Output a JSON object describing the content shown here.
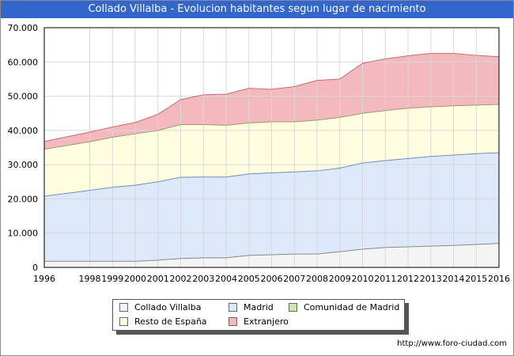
{
  "header": {
    "title": "Collado Villalba - Evolucion habitantes segun lugar de nacimiento"
  },
  "footer": {
    "credit": "http://www.foro-ciudad.com"
  },
  "chart_data": {
    "type": "area",
    "stacked": true,
    "title": "Collado Villalba - Evolucion habitantes segun lugar de nacimiento",
    "xlabel": "",
    "ylabel": "",
    "x": [
      1996,
      1998,
      1999,
      2000,
      2001,
      2002,
      2003,
      2004,
      2005,
      2006,
      2007,
      2008,
      2009,
      2010,
      2011,
      2012,
      2013,
      2014,
      2015,
      2016
    ],
    "xticks": [
      "1996",
      "1998",
      "1999",
      "2000",
      "2001",
      "2002",
      "2003",
      "2004",
      "2005",
      "2006",
      "2007",
      "2008",
      "2009",
      "2010",
      "2011",
      "2012",
      "2013",
      "2014",
      "2015",
      "2016"
    ],
    "ylim": [
      0,
      70000
    ],
    "yticks": [
      0,
      10000,
      20000,
      30000,
      40000,
      50000,
      60000,
      70000
    ],
    "ytick_labels": [
      "0",
      "10.000",
      "20.000",
      "30.000",
      "40.000",
      "50.000",
      "60.000",
      "70.000"
    ],
    "grid": true,
    "legend_position": "bottom",
    "cumulative_totals": [
      {
        "name": "Collado Villalba",
        "color": "#f4f4f4",
        "values": [
          1800,
          1800,
          1800,
          1800,
          2100,
          2600,
          2800,
          2800,
          3500,
          3700,
          3900,
          3900,
          4600,
          5300,
          5800,
          6000,
          6200,
          6400,
          6700,
          7000
        ]
      },
      {
        "name": "Madrid",
        "color": "#dde9fb",
        "values": [
          20800,
          22500,
          23400,
          24000,
          25000,
          26300,
          26400,
          26400,
          27300,
          27600,
          27900,
          28200,
          29000,
          30500,
          31200,
          31800,
          32400,
          32800,
          33200,
          33500
        ]
      },
      {
        "name": "Comunidad de Madrid",
        "color": "#cce8b0",
        "values": [
          20800,
          22500,
          23400,
          24000,
          25000,
          26300,
          26400,
          26400,
          27300,
          27600,
          27900,
          28200,
          29000,
          30500,
          31200,
          31800,
          32400,
          32800,
          33200,
          33500
        ]
      },
      {
        "name": "Resto de España",
        "color": "#fffde0",
        "values": [
          34500,
          36700,
          38000,
          39000,
          40000,
          41700,
          41700,
          41500,
          42200,
          42500,
          42500,
          43000,
          43800,
          45000,
          45800,
          46500,
          46900,
          47200,
          47400,
          47600
        ]
      },
      {
        "name": "Extranjero",
        "color": "#f4b9bd",
        "values": [
          36800,
          39500,
          41000,
          42300,
          44700,
          49000,
          50400,
          50600,
          52300,
          52000,
          52800,
          54600,
          55000,
          59600,
          60900,
          61800,
          62500,
          62500,
          61900,
          61500
        ]
      }
    ],
    "series": [
      {
        "name": "Collado Villalba",
        "values": [
          1800,
          1800,
          1800,
          1800,
          2100,
          2600,
          2800,
          2800,
          3500,
          3700,
          3900,
          3900,
          4600,
          5300,
          5800,
          6000,
          6200,
          6400,
          6700,
          7000
        ]
      },
      {
        "name": "Madrid",
        "values": [
          19000,
          20700,
          21600,
          22200,
          22900,
          23700,
          23600,
          23600,
          23800,
          23900,
          24000,
          24300,
          24400,
          25200,
          25400,
          25800,
          26200,
          26400,
          26500,
          26500
        ]
      },
      {
        "name": "Comunidad de Madrid",
        "values": [
          0,
          0,
          0,
          0,
          0,
          0,
          0,
          0,
          0,
          0,
          0,
          0,
          0,
          0,
          0,
          0,
          0,
          0,
          0,
          0
        ]
      },
      {
        "name": "Resto de España",
        "values": [
          13700,
          14200,
          14600,
          15000,
          15000,
          15400,
          15300,
          15100,
          14900,
          14900,
          14600,
          14800,
          14800,
          14500,
          14600,
          14700,
          14500,
          14400,
          14200,
          14100
        ]
      },
      {
        "name": "Extranjero",
        "values": [
          2300,
          2800,
          3000,
          3300,
          4700,
          7300,
          8700,
          9100,
          10100,
          9500,
          10300,
          11600,
          11200,
          14600,
          15100,
          15300,
          15600,
          15300,
          14500,
          13900
        ]
      }
    ]
  },
  "legend": {
    "items": [
      {
        "label": "Collado Villalba",
        "color": "#f4f4f4"
      },
      {
        "label": "Madrid",
        "color": "#dde9fb"
      },
      {
        "label": "Comunidad de Madrid",
        "color": "#cce8b0"
      },
      {
        "label": "Resto de España",
        "color": "#fffde0"
      },
      {
        "label": "Extranjero",
        "color": "#f4b9bd"
      }
    ]
  }
}
